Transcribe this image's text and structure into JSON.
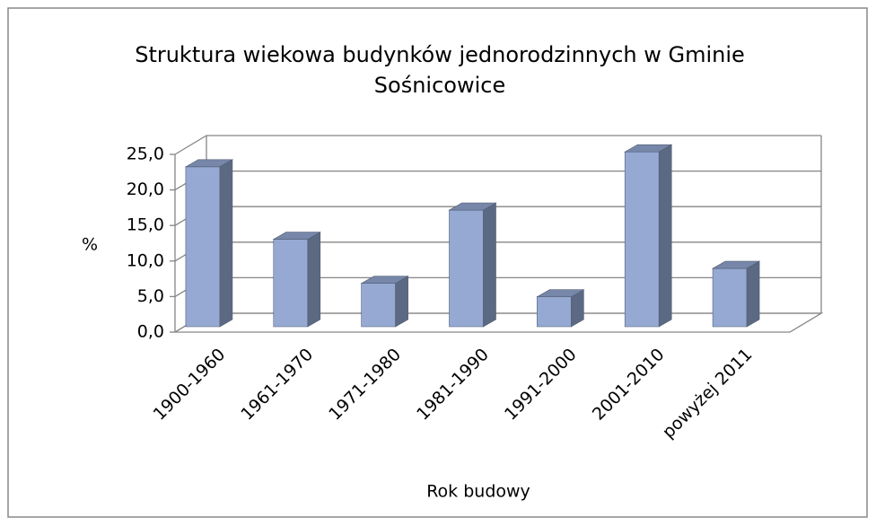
{
  "chart_data": {
    "type": "bar3d",
    "title": [
      "Struktura wiekowa budynków jednorodzinnych w Gminie",
      "Sośnicowice"
    ],
    "x_label": "Rok budowy",
    "y_label": "%",
    "categories": [
      "1900-1960",
      "1961-1970",
      "1971-1980",
      "1981-1990",
      "1991-2000",
      "2001-2010",
      "powyżej 2011"
    ],
    "values": [
      22.5,
      12.3,
      6.1,
      16.4,
      4.2,
      24.6,
      8.2
    ],
    "color": "#95a9d3",
    "ylim": [
      0,
      25
    ],
    "yticks": [
      {
        "value": 0,
        "label": "0,0"
      },
      {
        "value": 5,
        "label": "5,0"
      },
      {
        "value": 10,
        "label": "10,0"
      },
      {
        "value": 15,
        "label": "15,0"
      },
      {
        "value": 20,
        "label": "20,0"
      },
      {
        "value": 25,
        "label": "25,0"
      }
    ],
    "grid": true
  }
}
